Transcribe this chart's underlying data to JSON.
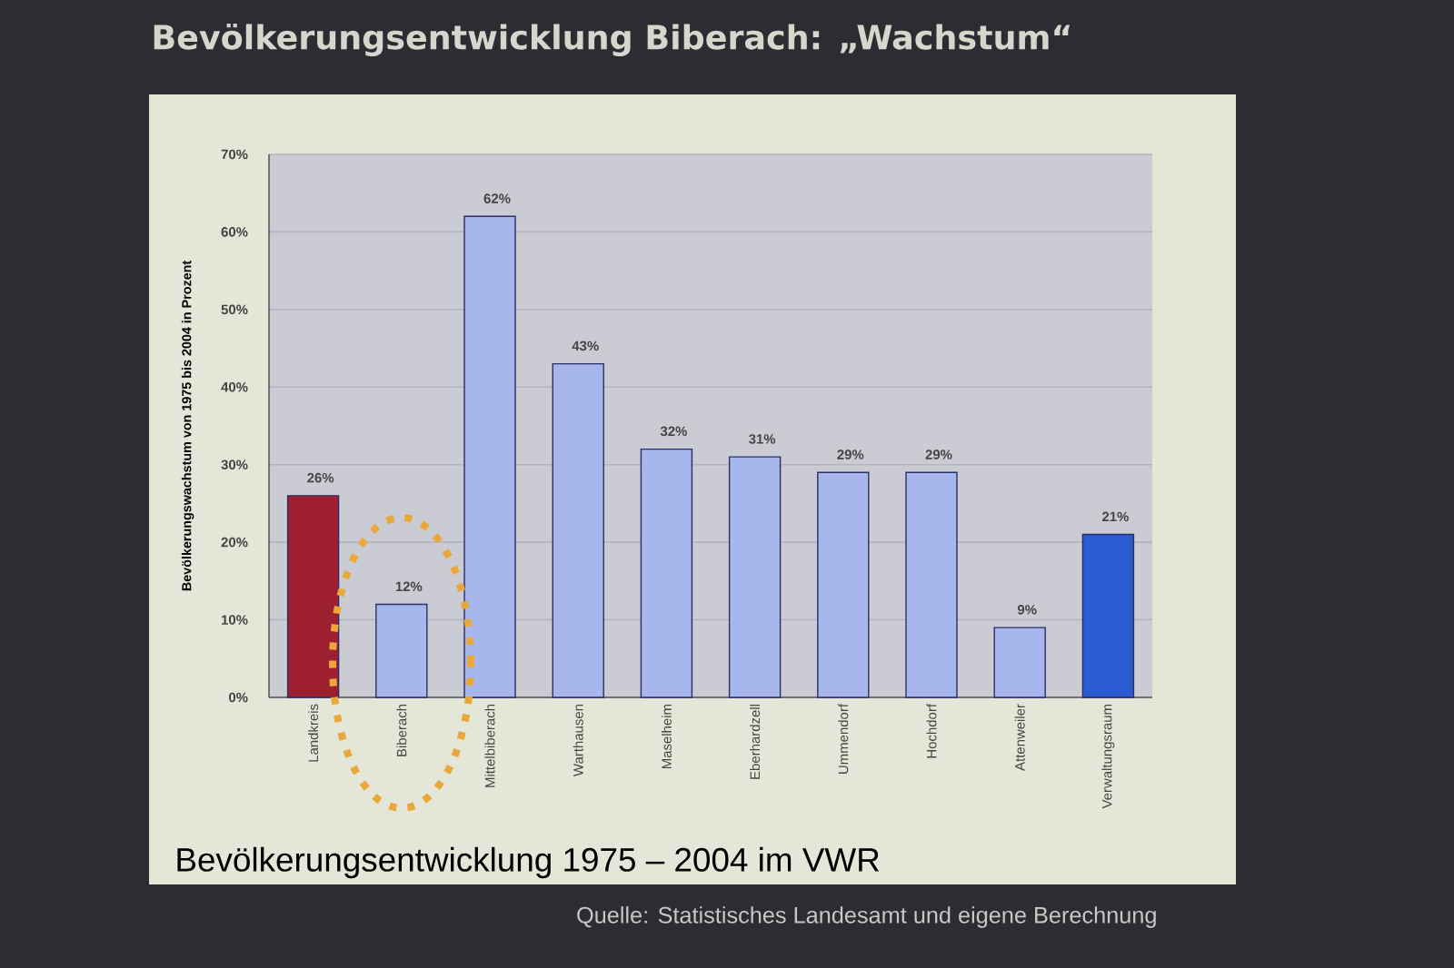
{
  "chart_data": {
    "type": "bar",
    "title": "Bevölkerungsentwicklung Biberach: „Wachstum“",
    "ylabel": "Bevölkerungswachstum von 1975 bis 2004 in Prozent",
    "categories": [
      "Landkreis",
      "Biberach",
      "Mittelbiberach",
      "Warthausen",
      "Maselheim",
      "Eberhardzell",
      "Ummendorf",
      "Hochdorf",
      "Attenweiler",
      "Verwaltungsraum"
    ],
    "values": [
      26,
      12,
      62,
      43,
      32,
      31,
      29,
      29,
      9,
      21
    ],
    "colors": [
      "#9e1f30",
      "#a8b6ee",
      "#a8b6ee",
      "#a8b6ee",
      "#a8b6ee",
      "#a8b6ee",
      "#a8b6ee",
      "#a8b6ee",
      "#a8b6ee",
      "#2b5bd0"
    ],
    "value_labels": [
      "26%",
      "12%",
      "62%",
      "43%",
      "32%",
      "31%",
      "29%",
      "29%",
      "9%",
      "21%"
    ],
    "ylim": [
      0,
      70
    ],
    "yticks": [
      {
        "value": 0,
        "label": "0%"
      },
      {
        "value": 10,
        "label": "10%"
      },
      {
        "value": 20,
        "label": "20%"
      },
      {
        "value": 30,
        "label": "30%"
      },
      {
        "value": 40,
        "label": "40%"
      },
      {
        "value": 50,
        "label": "50%"
      },
      {
        "value": 60,
        "label": "60%"
      },
      {
        "value": 70,
        "label": "70%"
      }
    ],
    "grid": "y",
    "annotations": [
      "Bevölkerungsentwicklung 1975 – 2004 im VWR",
      "Quelle: Statistisches Landesamt und eigene Berechnung"
    ]
  }
}
